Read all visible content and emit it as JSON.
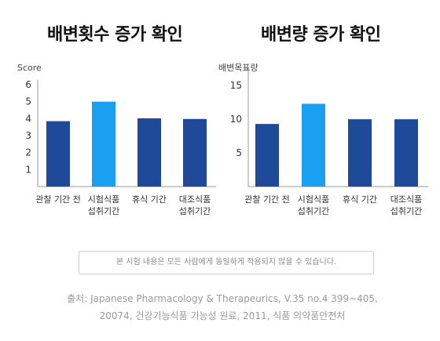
{
  "colors": {
    "dark_bar": "#1f4a9a",
    "highlight_bar": "#1aa0f0",
    "axis": "#9a9a9a",
    "grid": "#e6e6e6"
  },
  "chart_data": [
    {
      "type": "bar",
      "title": "배변횟수 증가 확인",
      "ylabel": "Score",
      "ylim": [
        0,
        6
      ],
      "yticks": [
        1,
        2,
        3,
        4,
        5,
        6
      ],
      "categories": [
        "관찰 기간 전",
        "시험식품\n섭취기간",
        "휴식 기간",
        "대조식품\n섭취기간"
      ],
      "values": [
        3.85,
        5.0,
        4.02,
        3.98
      ],
      "highlight_index": 1
    },
    {
      "type": "bar",
      "title": "배변량 증가 확인",
      "ylabel": "배변목표량",
      "ylim": [
        0,
        17
      ],
      "yticks": [
        5,
        10,
        15
      ],
      "categories": [
        "관찰 기간 전",
        "시험식품\n섭취기간",
        "휴식 기간",
        "대조식품\n섭취기간"
      ],
      "values": [
        9.3,
        12.3,
        10.0,
        10.0
      ],
      "highlight_index": 1
    }
  ],
  "notice": "본 시험 내용은 모든 사람에게 동일하게 적용되지 않을 수 있습니다.",
  "source_line1": "출처: Japanese Pharmacology & Therapeurics, V.35 no.4 399~405,",
  "source_line2": "20074, 건강기능식품 기능성 원료, 2011, 식품 의약품안전처"
}
